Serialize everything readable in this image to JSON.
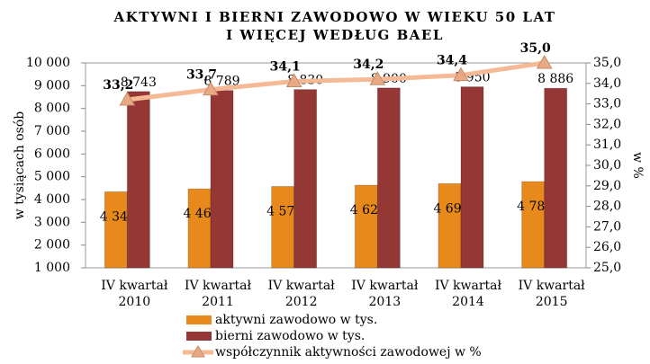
{
  "chart_data": {
    "type": "bar",
    "title": [
      "AKTYWNI I BIERNI ZAWODOWO W WIEKU 50 LAT",
      "I WIĘCEJ WEDŁUG BAEL"
    ],
    "y_label": "w tysiącach osób",
    "y2_label": "w %",
    "categories": [
      [
        "IV kwartał",
        "2010"
      ],
      [
        "IV kwartał",
        "2011"
      ],
      [
        "IV kwartał",
        "2012"
      ],
      [
        "IV kwartał",
        "2013"
      ],
      [
        "IV kwartał",
        "2014"
      ],
      [
        "IV kwartał",
        "2015"
      ]
    ],
    "series": [
      {
        "name": "aktywni zawodowo w tys.",
        "type": "bar",
        "color": "#e8891c",
        "values": [
          4340,
          4468,
          4573,
          4629,
          4699,
          4786
        ],
        "value_labels": [
          "4 340",
          "4 468",
          "4 573",
          "4 629",
          "4 699",
          "4 786"
        ]
      },
      {
        "name": "bierni zawodowo w tys.",
        "type": "bar",
        "color": "#953735",
        "values": [
          8743,
          8789,
          8830,
          8900,
          8950,
          8886
        ],
        "value_labels": [
          "8 743",
          "8 789",
          "8 830",
          "8 900",
          "8 950",
          "8 886"
        ]
      },
      {
        "name": "współczynnik aktywności zawodowej w %",
        "type": "line",
        "axis": "y2",
        "color": "#f5b996",
        "marker_color": "#e9a985",
        "values": [
          33.2,
          33.7,
          34.1,
          34.2,
          34.4,
          35.0
        ],
        "value_labels": [
          "33,2",
          "33,7",
          "34,1",
          "34,2",
          "34,4",
          "35,0"
        ]
      }
    ],
    "ylim": [
      1000,
      10000
    ],
    "yticks": [
      {
        "value": 1000,
        "label": "1 000"
      },
      {
        "value": 2000,
        "label": "2 000"
      },
      {
        "value": 3000,
        "label": "3 000"
      },
      {
        "value": 4000,
        "label": "4 000"
      },
      {
        "value": 5000,
        "label": "5 000"
      },
      {
        "value": 6000,
        "label": "6 000"
      },
      {
        "value": 7000,
        "label": "7 000"
      },
      {
        "value": 8000,
        "label": "8 000"
      },
      {
        "value": 9000,
        "label": "9 000"
      },
      {
        "value": 10000,
        "label": "10 000"
      }
    ],
    "y2lim": [
      25,
      35
    ],
    "y2ticks": [
      {
        "value": 25,
        "label": "25,0"
      },
      {
        "value": 26,
        "label": "26,0"
      },
      {
        "value": 27,
        "label": "27,0"
      },
      {
        "value": 28,
        "label": "28,0"
      },
      {
        "value": 29,
        "label": "29,0"
      },
      {
        "value": 30,
        "label": "30,0"
      },
      {
        "value": 31,
        "label": "31,0"
      },
      {
        "value": 32,
        "label": "32,0"
      },
      {
        "value": 33,
        "label": "33,0"
      },
      {
        "value": 34,
        "label": "34,0"
      },
      {
        "value": 35,
        "label": "35,0"
      }
    ],
    "legend": "bottom"
  }
}
